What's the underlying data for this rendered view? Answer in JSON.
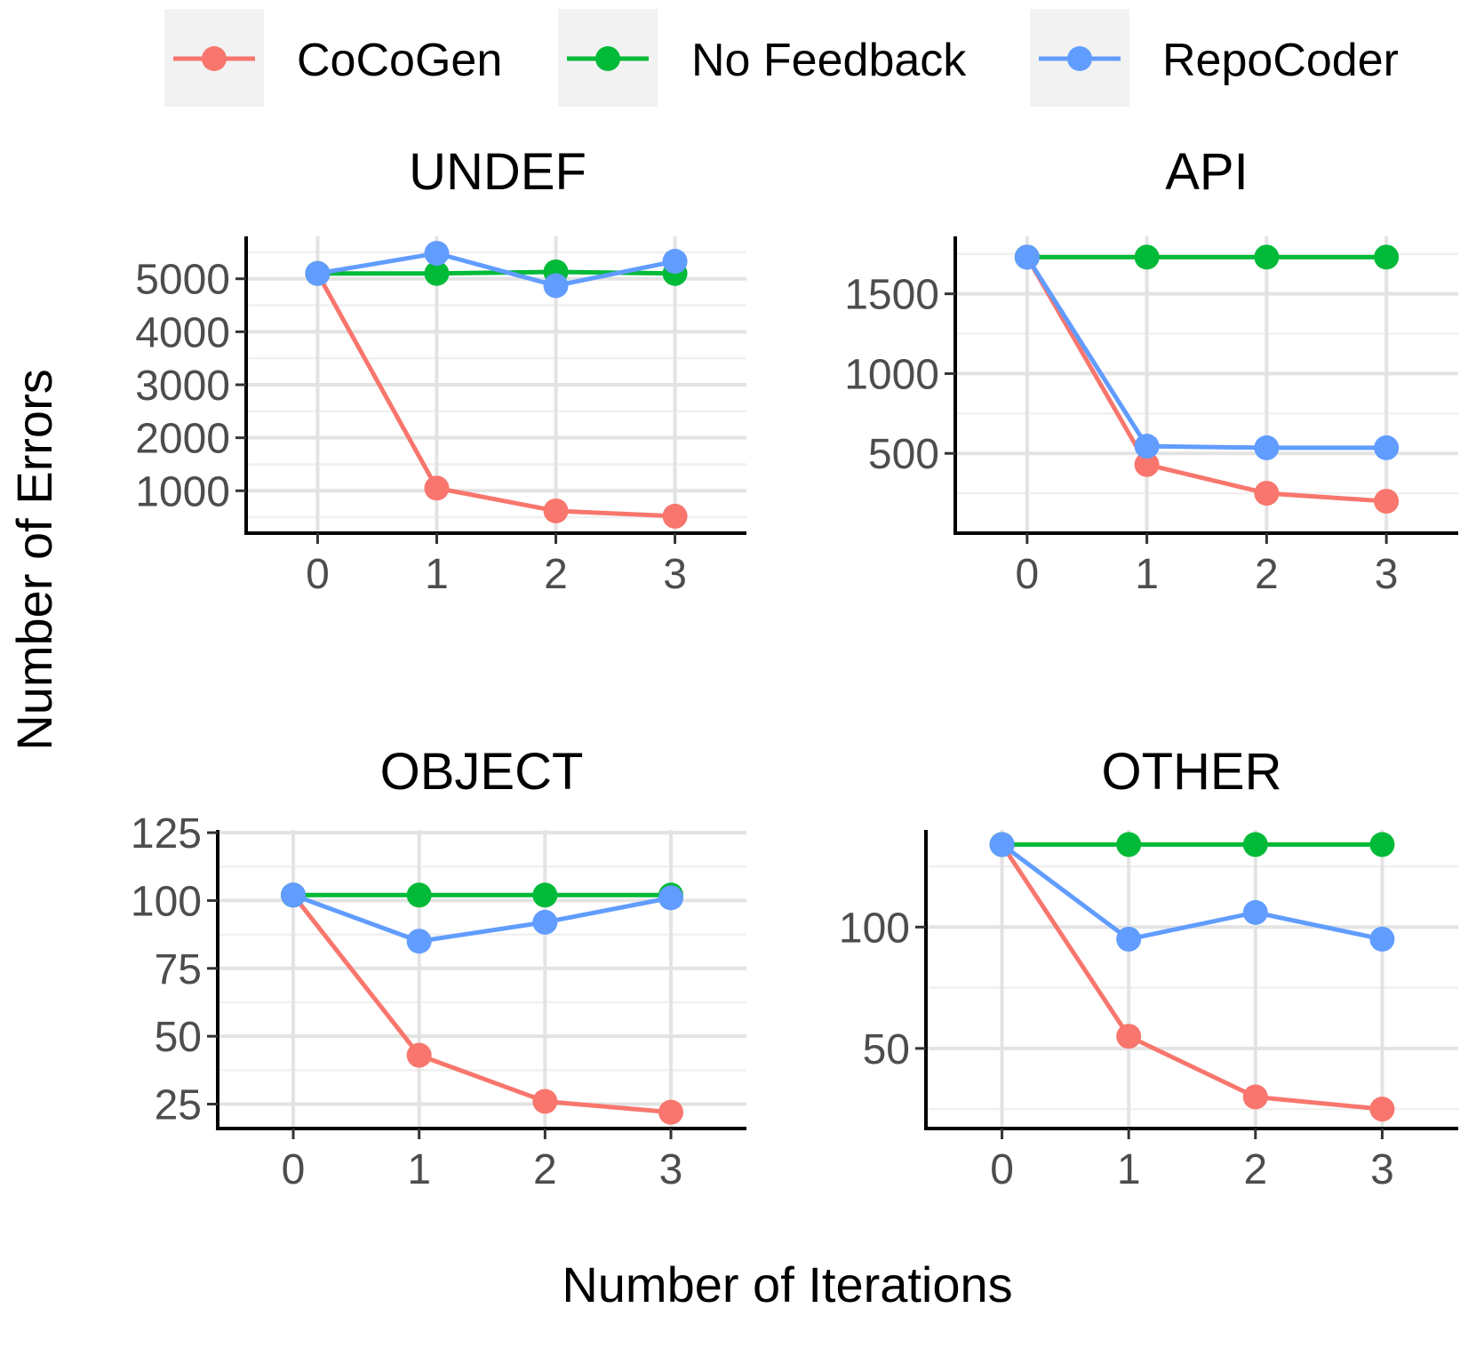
{
  "colors": {
    "CoCoGen": "#F8766D",
    "No Feedback": "#00BA38",
    "RepoCoder": "#619CFF"
  },
  "legend": {
    "items": [
      "CoCoGen",
      "No Feedback",
      "RepoCoder"
    ],
    "placement": "top"
  },
  "chart_data": [
    {
      "type": "line",
      "title": "UNDEF",
      "x": [
        0,
        1,
        2,
        3
      ],
      "xlim": [
        -0.6,
        3.6
      ],
      "ylim": [
        200,
        5800
      ],
      "yticks": [
        1000,
        2000,
        3000,
        4000,
        5000
      ],
      "xticks": [
        0,
        1,
        2,
        3
      ],
      "series": [
        {
          "name": "CoCoGen",
          "values": [
            5100,
            1050,
            620,
            520
          ]
        },
        {
          "name": "No Feedback",
          "values": [
            5100,
            5100,
            5130,
            5100
          ]
        },
        {
          "name": "RepoCoder",
          "values": [
            5100,
            5480,
            4870,
            5330
          ]
        }
      ]
    },
    {
      "type": "line",
      "title": "API",
      "x": [
        0,
        1,
        2,
        3
      ],
      "xlim": [
        -0.6,
        3.6
      ],
      "ylim": [
        0,
        1860
      ],
      "yticks": [
        500,
        1000,
        1500
      ],
      "xticks": [
        0,
        1,
        2,
        3
      ],
      "series": [
        {
          "name": "CoCoGen",
          "values": [
            1730,
            430,
            250,
            200
          ]
        },
        {
          "name": "No Feedback",
          "values": [
            1730,
            1730,
            1730,
            1730
          ]
        },
        {
          "name": "RepoCoder",
          "values": [
            1730,
            545,
            535,
            535
          ]
        }
      ]
    },
    {
      "type": "line",
      "title": "OBJECT",
      "x": [
        0,
        1,
        2,
        3
      ],
      "xlim": [
        -0.6,
        3.6
      ],
      "ylim": [
        16,
        126
      ],
      "yticks": [
        25,
        50,
        75,
        100,
        125
      ],
      "xticks": [
        0,
        1,
        2,
        3
      ],
      "series": [
        {
          "name": "CoCoGen",
          "values": [
            102,
            43,
            26,
            22
          ]
        },
        {
          "name": "No Feedback",
          "values": [
            102,
            102,
            102,
            102
          ]
        },
        {
          "name": "RepoCoder",
          "values": [
            102,
            85,
            92,
            101
          ]
        }
      ]
    },
    {
      "type": "line",
      "title": "OTHER",
      "x": [
        0,
        1,
        2,
        3
      ],
      "xlim": [
        -0.6,
        3.6
      ],
      "ylim": [
        17,
        140
      ],
      "yticks": [
        50,
        100
      ],
      "xticks": [
        0,
        1,
        2,
        3
      ],
      "series": [
        {
          "name": "CoCoGen",
          "values": [
            134,
            55,
            30,
            25
          ]
        },
        {
          "name": "No Feedback",
          "values": [
            134,
            134,
            134,
            134
          ]
        },
        {
          "name": "RepoCoder",
          "values": [
            134,
            95,
            106,
            95
          ]
        }
      ]
    }
  ],
  "axes": {
    "xlabel": "Number of Iterations",
    "ylabel": "Number of Errors"
  }
}
